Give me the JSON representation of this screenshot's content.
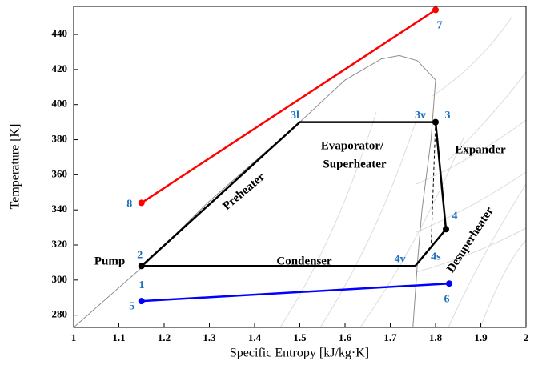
{
  "chart_data": {
    "type": "line",
    "xlabel": "Specific Entropy [kJ/kg·K]",
    "ylabel": "Temperature [K]",
    "xlim": [
      1,
      2
    ],
    "ylim": [
      273,
      456
    ],
    "xticks": [
      1,
      1.1,
      1.2,
      1.3,
      1.4,
      1.5,
      1.6,
      1.7,
      1.8,
      1.9,
      2
    ],
    "yticks": [
      280,
      300,
      320,
      340,
      360,
      380,
      400,
      420,
      440
    ],
    "saturation_dome": {
      "color": "#8c8c8c",
      "x": [
        1.0,
        1.15,
        1.3,
        1.5,
        1.6,
        1.68,
        1.72,
        1.76,
        1.8,
        1.79,
        1.77,
        1.76,
        1.75
      ],
      "y": [
        273,
        307,
        345,
        390,
        414,
        426,
        428,
        425,
        414,
        380,
        340,
        310,
        273
      ]
    },
    "series": [
      {
        "color": "#000000",
        "x": [
          1.15,
          1.5,
          1.77,
          1.8,
          1.823,
          1.755
        ],
        "y": [
          308,
          390,
          390,
          390,
          329,
          308
        ],
        "closed": true,
        "markers": [
          true,
          false,
          false,
          true,
          true,
          false
        ],
        "point_labels": [
          "2",
          "3l",
          "3v",
          "3",
          "4",
          "4v"
        ]
      },
      {
        "color": "#ff0000",
        "x": [
          1.15,
          1.8
        ],
        "y": [
          344,
          454
        ],
        "markers": [
          true,
          true
        ],
        "point_labels": [
          "8",
          "7"
        ]
      },
      {
        "color": "#0000ff",
        "x": [
          1.15,
          1.83
        ],
        "y": [
          288,
          298
        ],
        "markers": [
          true,
          true
        ],
        "point_labels": [
          "5",
          "6"
        ]
      },
      {
        "color": "#000000",
        "x": [
          1.8,
          1.79
        ],
        "y": [
          390,
          318
        ],
        "dashed": true,
        "markers": [
          false,
          false
        ],
        "point_labels": [
          null,
          "4s"
        ]
      }
    ],
    "point_label_color": "#1f6fc0",
    "annotations": [
      "1",
      "Pump",
      "Preheater",
      "Evaporator/",
      "Superheater",
      "Expander",
      "Condenser",
      "Desuperheater"
    ]
  }
}
